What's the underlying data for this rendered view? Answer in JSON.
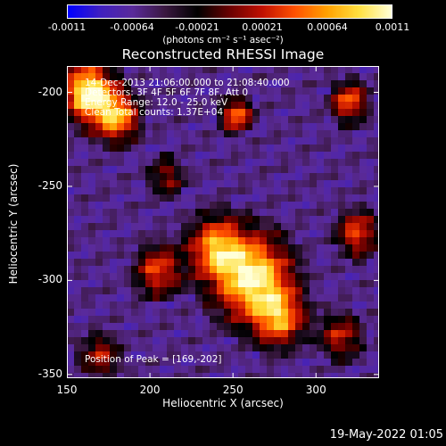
{
  "colorbar": {
    "tick_labels": [
      "-0.0011",
      "-0.00064",
      "-0.00021",
      "0.00021",
      "0.00064",
      "0.0011"
    ],
    "units_label": "(photons cm⁻² s⁻¹ asec⁻²)",
    "colors": [
      "#0000ff",
      "#4020c0",
      "#5a2a9a",
      "#3a1840",
      "#000000",
      "#6a0000",
      "#c01000",
      "#ff5000",
      "#ffa000",
      "#ffe040",
      "#ffffd8"
    ]
  },
  "chart_data": {
    "type": "heatmap",
    "title": "Reconstructed RHESSI Image",
    "xlabel": "Heliocentric X (arcsec)",
    "ylabel": "Heliocentric Y (arcsec)",
    "xlim": [
      150,
      338
    ],
    "ylim": [
      -352,
      -186
    ],
    "x_ticks": [
      150,
      200,
      250,
      300
    ],
    "y_ticks": [
      -200,
      -250,
      -300,
      -350
    ],
    "annotations": [
      "14-Dec-2013 21:06:00.000 to 21:08:40.000",
      "Detectors: 3F 4F 5F 6F 7F 8F, Att 0",
      "Energy Range: 12.0 - 25.0 keV",
      "Clean      Total counts: 1.37E+04"
    ],
    "peak_label": "Position of Peak = [169,-202]",
    "peak": [
      169,
      -202
    ],
    "sources": [
      {
        "x": 163,
        "y": -200,
        "amp": 1.0,
        "sigma": 10
      },
      {
        "x": 180,
        "y": -213,
        "amp": 0.75,
        "sigma": 9
      },
      {
        "x": 262,
        "y": -299,
        "amp": 0.95,
        "sigma": 15
      },
      {
        "x": 240,
        "y": -283,
        "amp": 0.7,
        "sigma": 11
      },
      {
        "x": 278,
        "y": -320,
        "amp": 0.65,
        "sigma": 10
      },
      {
        "x": 252,
        "y": -212,
        "amp": 0.65,
        "sigma": 6
      },
      {
        "x": 205,
        "y": -295,
        "amp": 0.55,
        "sigma": 9
      },
      {
        "x": 320,
        "y": -205,
        "amp": 0.6,
        "sigma": 7
      },
      {
        "x": 325,
        "y": -275,
        "amp": 0.55,
        "sigma": 8
      },
      {
        "x": 315,
        "y": -330,
        "amp": 0.45,
        "sigma": 8
      },
      {
        "x": 170,
        "y": -340,
        "amp": 0.4,
        "sigma": 8
      },
      {
        "x": 210,
        "y": -245,
        "amp": 0.35,
        "sigma": 7
      }
    ]
  },
  "datestamp": "19-May-2022 01:05"
}
